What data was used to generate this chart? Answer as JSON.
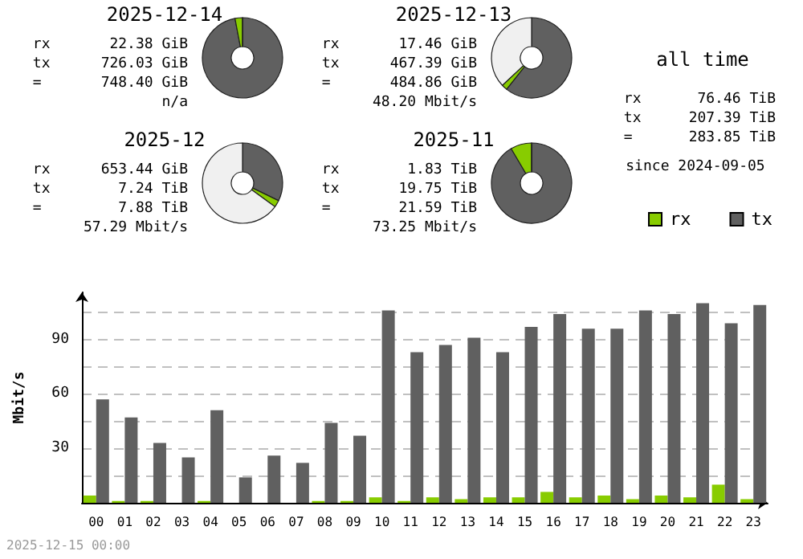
{
  "chart_data": [
    {
      "type": "donut",
      "title": "2025-12-14",
      "categories": [
        null,
        null,
        null
      ],
      "values": [
        97,
        3,
        0
      ],
      "colors": [
        "#606060",
        "#88cc00",
        "#f0f0f0"
      ],
      "annotations": [
        "rx 22.38 GiB",
        "tx 726.03 GiB",
        "= 748.40 GiB",
        "n/a"
      ]
    },
    {
      "type": "donut",
      "title": "2025-12-13",
      "categories": [
        null,
        null,
        null
      ],
      "values": [
        60.7,
        2.3,
        37
      ],
      "colors": [
        "#606060",
        "#88cc00",
        "#f0f0f0"
      ],
      "annotations": [
        "rx 17.46 GiB",
        "tx 467.39 GiB",
        "= 484.86 GiB",
        "48.20 Mbit/s"
      ]
    },
    {
      "type": "other",
      "title": "all time",
      "annotations": [
        "rx 76.46 TiB",
        "tx 207.39 TiB",
        "= 283.85 TiB",
        "since 2024-09-05"
      ]
    },
    {
      "type": "donut",
      "title": "2025-12",
      "categories": [
        null,
        null,
        null
      ],
      "values": [
        32.2,
        2.8,
        65
      ],
      "colors": [
        "#606060",
        "#88cc00",
        "#f0f0f0"
      ],
      "annotations": [
        "rx 653.44 GiB",
        "tx 7.24 TiB",
        "= 7.88 TiB",
        "57.29 Mbit/s"
      ]
    },
    {
      "type": "donut",
      "title": "2025-11",
      "categories": [
        null,
        null,
        null
      ],
      "values": [
        91.5,
        8.5,
        0
      ],
      "colors": [
        "#606060",
        "#88cc00",
        "#f0f0f0"
      ],
      "annotations": [
        "rx 1.83 TiB",
        "tx 19.75 TiB",
        "= 21.59 TiB",
        "73.25 Mbit/s"
      ]
    },
    {
      "type": "bar",
      "ylabel": "Mbit/s",
      "legend": "top right",
      "grid": "y",
      "categories": [
        "00",
        "01",
        "02",
        "03",
        "04",
        "05",
        "06",
        "07",
        "08",
        "09",
        "10",
        "11",
        "12",
        "13",
        "14",
        "15",
        "16",
        "17",
        "18",
        "19",
        "20",
        "21",
        "22",
        "23"
      ],
      "series": [
        {
          "name": "rx",
          "color": "#88cc00",
          "values": [
            4,
            1,
            1,
            0,
            1,
            0,
            0,
            0,
            1,
            1,
            3,
            1,
            3,
            2,
            3,
            3,
            6,
            3,
            4,
            2,
            4,
            3,
            10,
            2
          ]
        },
        {
          "name": "tx",
          "color": "#606060",
          "values": [
            57,
            47,
            33,
            25,
            51,
            14,
            26,
            22,
            44,
            37,
            106,
            83,
            87,
            91,
            83,
            97,
            104,
            96,
            96,
            106,
            104,
            110,
            99,
            109
          ]
        }
      ],
      "ylim": [
        0,
        116
      ],
      "yticks": [
        {
          "value": 15,
          "label": null
        },
        30,
        {
          "value": 45,
          "label": null
        },
        60,
        {
          "value": 75,
          "label": null
        },
        90,
        {
          "value": 105,
          "label": null
        }
      ],
      "annotations": [
        "2025-12-15 00:00"
      ]
    }
  ]
}
